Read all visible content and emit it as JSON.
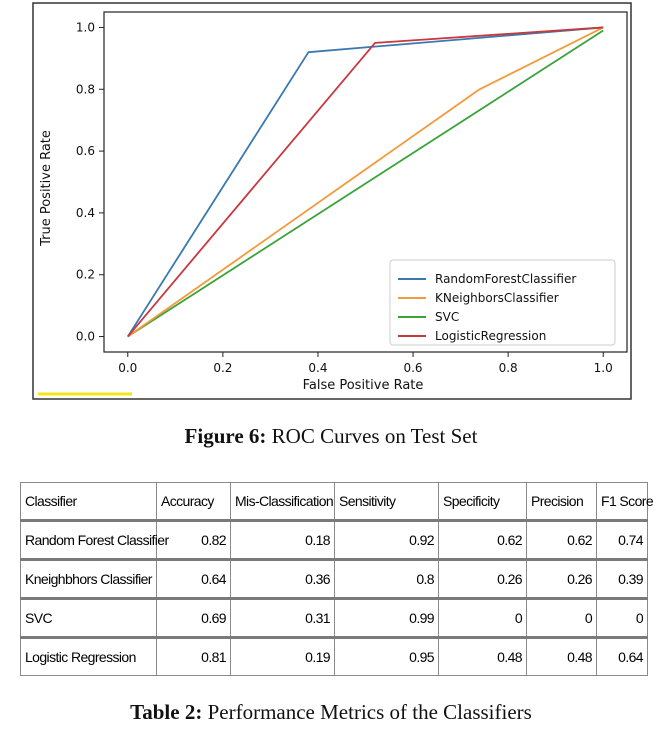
{
  "figure": {
    "label": "Figure 6:",
    "caption": "ROC Curves on Test Set"
  },
  "chart_data": {
    "type": "line",
    "title": "",
    "xlabel": "False Positive Rate",
    "ylabel": "True Positive Rate",
    "xlim": [
      -0.05,
      1.05
    ],
    "ylim": [
      -0.05,
      1.05
    ],
    "xticks": [
      "0.0",
      "0.2",
      "0.4",
      "0.6",
      "0.8",
      "1.0"
    ],
    "yticks": [
      "0.0",
      "0.2",
      "0.4",
      "0.6",
      "0.8",
      "1.0"
    ],
    "legend_position": "bottom-right",
    "series": [
      {
        "name": "RandomForestClassifier",
        "color": "#3a78b0",
        "x": [
          0,
          0.38,
          1
        ],
        "y": [
          0,
          0.92,
          1
        ]
      },
      {
        "name": "KNeighborsClassifier",
        "color": "#f39a3a",
        "x": [
          0,
          0.74,
          1
        ],
        "y": [
          0,
          0.8,
          1
        ]
      },
      {
        "name": "SVC",
        "color": "#3aa33a",
        "x": [
          0,
          1
        ],
        "y": [
          0,
          0.99
        ]
      },
      {
        "name": "LogisticRegression",
        "color": "#c8393f",
        "x": [
          0,
          0.52,
          1
        ],
        "y": [
          0,
          0.95,
          1
        ]
      }
    ]
  },
  "table": {
    "label": "Table 2:",
    "caption": "Performance Metrics of the Classifiers",
    "headers": [
      "Classifier",
      "Accuracy",
      "Mis-Classification",
      "Sensitivity",
      "Specificity",
      "Precision",
      "F1 Score"
    ],
    "rows": [
      [
        "Random Forest Classifier",
        "0.82",
        "0.18",
        "0.92",
        "0.62",
        "0.62",
        "0.74"
      ],
      [
        "Kneighbhors Classifier",
        "0.64",
        "0.36",
        "0.8",
        "0.26",
        "0.26",
        "0.39"
      ],
      [
        "SVC",
        "0.69",
        "0.31",
        "0.99",
        "0",
        "0",
        "0"
      ],
      [
        "Logistic Regression",
        "0.81",
        "0.19",
        "0.95",
        "0.48",
        "0.48",
        "0.64"
      ]
    ]
  }
}
